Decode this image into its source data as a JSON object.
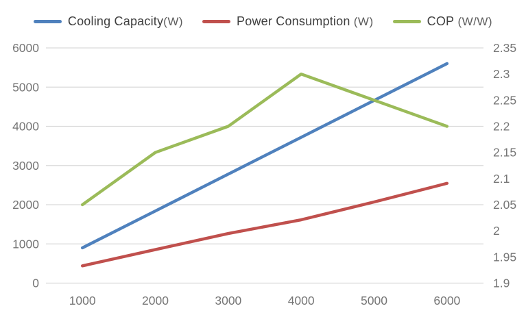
{
  "chart_data": {
    "type": "line",
    "title": "",
    "xlabel": "",
    "ylabel_left": "",
    "ylabel_right": "",
    "categories": [
      "1000",
      "2000",
      "3000",
      "4000",
      "5000",
      "6000"
    ],
    "series": [
      {
        "name": "Cooling Capacity(W)",
        "axis": "left",
        "color": "#4F81BD",
        "values": [
          900,
          1840,
          2780,
          3720,
          4660,
          5600
        ]
      },
      {
        "name": "Power Consumption (W)",
        "axis": "left",
        "color": "#C0504D",
        "values": [
          440,
          855,
          1265,
          1615,
          2070,
          2545
        ]
      },
      {
        "name": "COP (W/W)",
        "axis": "right",
        "color": "#9BBB59",
        "values": [
          2.05,
          2.15,
          2.2,
          2.3,
          2.25,
          2.2
        ]
      }
    ],
    "left_axis": {
      "min": 0,
      "max": 6000,
      "step": 1000,
      "tick_labels": [
        "0",
        "1000",
        "2000",
        "3000",
        "4000",
        "5000",
        "6000"
      ]
    },
    "right_axis": {
      "min": 1.9,
      "max": 2.35,
      "step": 0.05,
      "tick_labels": [
        "1.9",
        "1.95",
        "2",
        "2.05",
        "2.1",
        "2.15",
        "2.2",
        "2.25",
        "2.3",
        "2.35"
      ]
    },
    "grid": true,
    "legend_position": "top"
  },
  "legend": {
    "items": [
      {
        "label": "Cooling Capacity",
        "unit": "(W)",
        "color": "#4F81BD"
      },
      {
        "label": "Power Consumption",
        "unit": " (W)",
        "color": "#C0504D"
      },
      {
        "label": "COP",
        "unit": " (W/W)",
        "color": "#9BBB59"
      }
    ]
  },
  "styles": {
    "grid_color": "#D9D9D9",
    "axis_text_color": "#767676",
    "legend_text_color": "#3F3F3F",
    "background": "#FFFFFF"
  }
}
